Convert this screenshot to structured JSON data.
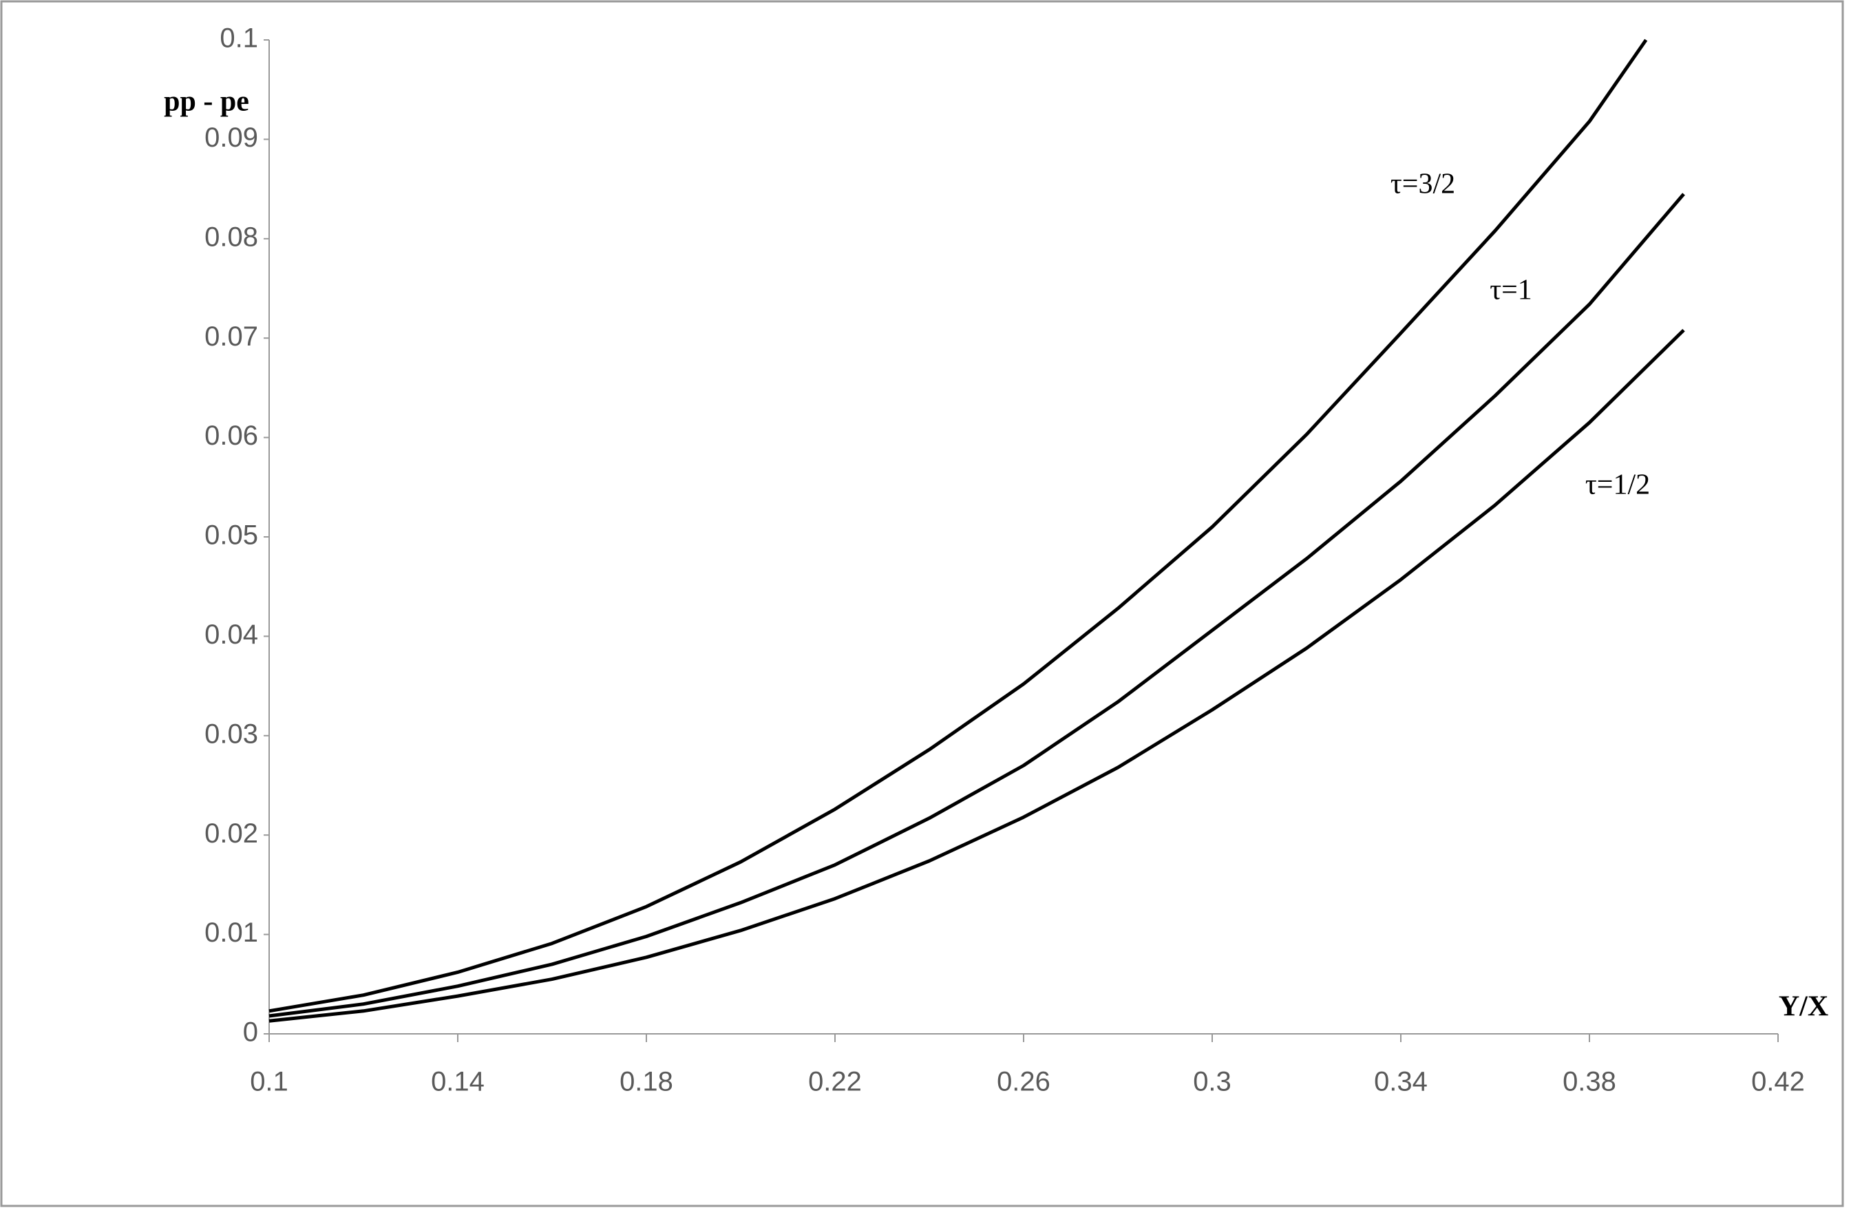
{
  "chart_data": {
    "type": "line",
    "x_label": "Y/X",
    "y_label": "pp - pe",
    "xlim": [
      0.1,
      0.42
    ],
    "xticks": [
      0.1,
      0.14,
      0.18,
      0.22,
      0.26,
      0.3,
      0.34,
      0.38,
      0.42
    ],
    "ylim": [
      0,
      0.1
    ],
    "yticks": [
      0,
      0.01,
      0.02,
      0.03,
      0.04,
      0.05,
      0.06,
      0.07,
      0.08,
      0.09,
      0.1
    ],
    "grid": false,
    "series": [
      {
        "name": "τ=3/2",
        "color": "#000000",
        "x": [
          0.1,
          0.12,
          0.14,
          0.16,
          0.18,
          0.2,
          0.22,
          0.24,
          0.26,
          0.28,
          0.3,
          0.32,
          0.34,
          0.36,
          0.38,
          0.392
        ],
        "values": [
          0.0023,
          0.0039,
          0.0062,
          0.0091,
          0.0128,
          0.0173,
          0.0226,
          0.0286,
          0.0352,
          0.0428,
          0.051,
          0.0603,
          0.0705,
          0.0808,
          0.0918,
          0.1
        ]
      },
      {
        "name": "τ=1",
        "color": "#000000",
        "x": [
          0.1,
          0.12,
          0.14,
          0.16,
          0.18,
          0.2,
          0.22,
          0.24,
          0.26,
          0.28,
          0.3,
          0.32,
          0.34,
          0.36,
          0.38,
          0.4
        ],
        "values": [
          0.0018,
          0.003,
          0.0048,
          0.007,
          0.0098,
          0.0132,
          0.017,
          0.0217,
          0.027,
          0.0334,
          0.0406,
          0.0478,
          0.0556,
          0.0642,
          0.0734,
          0.0845
        ]
      },
      {
        "name": "τ=1/2",
        "color": "#000000",
        "x": [
          0.1,
          0.12,
          0.14,
          0.16,
          0.18,
          0.2,
          0.22,
          0.24,
          0.26,
          0.28,
          0.3,
          0.32,
          0.34,
          0.36,
          0.38,
          0.4
        ],
        "values": [
          0.0013,
          0.0023,
          0.0038,
          0.0055,
          0.0077,
          0.0104,
          0.0136,
          0.0174,
          0.0218,
          0.0268,
          0.0326,
          0.0388,
          0.0457,
          0.0532,
          0.0615,
          0.0708
        ]
      }
    ]
  }
}
